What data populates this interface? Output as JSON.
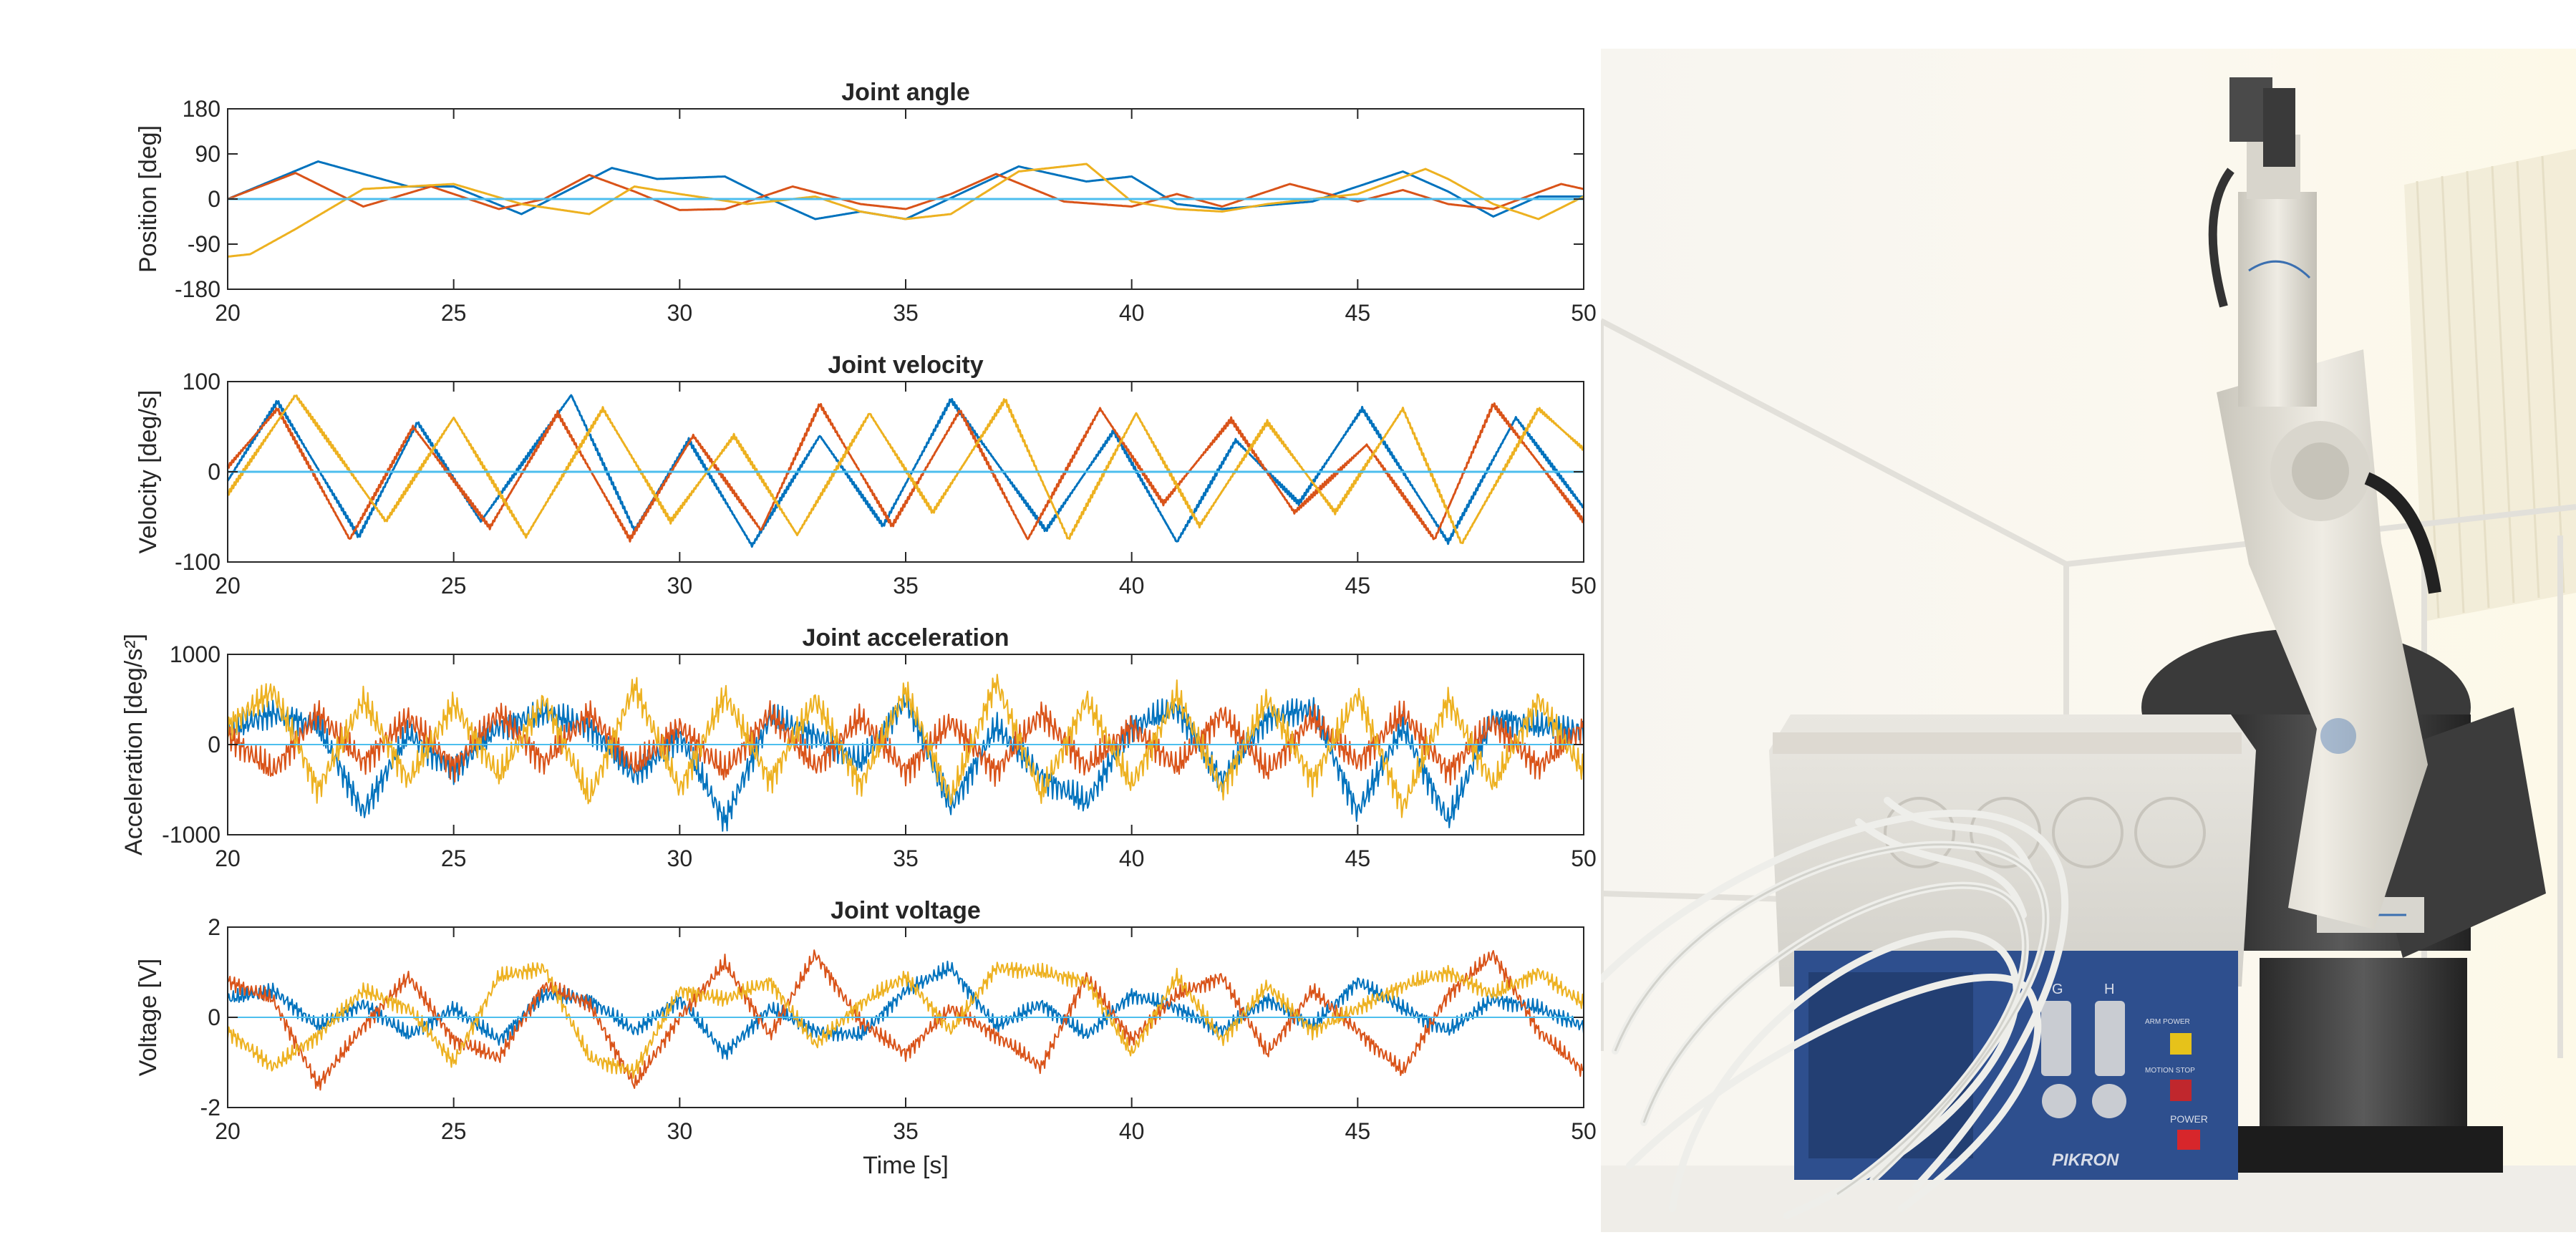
{
  "chart_data": [
    {
      "type": "line",
      "title": "Joint angle",
      "xlabel": "",
      "ylabel": "Position [deg]",
      "xlim": [
        20,
        50
      ],
      "ylim": [
        -180,
        180
      ],
      "xticks": [
        "20",
        "25",
        "30",
        "35",
        "40",
        "45",
        "50"
      ],
      "yticks": [
        "180",
        "90",
        "0",
        "-90",
        "-180"
      ],
      "grid": false,
      "legend": "none",
      "series": [
        {
          "color": "#0072BD",
          "x": [
            20,
            22,
            24,
            25,
            26.5,
            28.5,
            29.5,
            31,
            32,
            33,
            34,
            35,
            37.5,
            39,
            40,
            41,
            42,
            44,
            46,
            47,
            48,
            49,
            50
          ],
          "values": [
            0,
            75,
            25,
            25,
            -30,
            62,
            40,
            45,
            0,
            -40,
            -25,
            -40,
            65,
            35,
            45,
            -10,
            -20,
            -5,
            55,
            15,
            -35,
            5,
            5
          ]
        },
        {
          "color": "#D95319",
          "x": [
            20,
            21.5,
            23,
            24.5,
            26,
            27,
            28,
            29,
            30,
            31,
            32.5,
            34,
            35,
            36,
            37,
            38.5,
            40,
            41,
            42,
            43.5,
            45,
            46,
            47,
            48,
            49.5,
            50
          ],
          "values": [
            0,
            52,
            -15,
            25,
            -20,
            0,
            48,
            15,
            -22,
            -20,
            25,
            -10,
            -20,
            10,
            50,
            -5,
            -15,
            10,
            -15,
            30,
            -5,
            18,
            -10,
            -20,
            30,
            20
          ]
        },
        {
          "color": "#EDB120",
          "x": [
            20,
            20.5,
            21.5,
            23,
            25,
            26.5,
            28,
            29,
            30,
            31.5,
            33,
            34,
            35,
            36,
            37.5,
            39,
            40,
            41,
            42,
            43,
            45,
            46.5,
            47,
            48,
            49,
            50
          ],
          "values": [
            -115,
            -110,
            -60,
            20,
            30,
            -10,
            -30,
            25,
            10,
            -10,
            5,
            -25,
            -40,
            -30,
            55,
            70,
            -5,
            -20,
            -25,
            -10,
            10,
            60,
            40,
            -10,
            -40,
            5
          ]
        },
        {
          "color": "#4DBEEE",
          "x": [
            20,
            50
          ],
          "values": [
            0,
            0
          ]
        }
      ]
    },
    {
      "type": "line",
      "title": "Joint velocity",
      "xlabel": "",
      "ylabel": "Velocity [deg/s]",
      "xlim": [
        20,
        50
      ],
      "ylim": [
        -100,
        100
      ],
      "xticks": [
        "20",
        "25",
        "30",
        "35",
        "40",
        "45",
        "50"
      ],
      "yticks": [
        "100",
        "0",
        "-100"
      ],
      "grid": false,
      "legend": "none",
      "series": [
        {
          "color": "#0072BD",
          "x": [
            20,
            21.1,
            22.9,
            24.2,
            25.6,
            27.6,
            29,
            30.2,
            31.6,
            33.1,
            34.5,
            36,
            38.1,
            39.6,
            41,
            42.3,
            43.7,
            45.1,
            47,
            48.5,
            50
          ],
          "values": [
            -10,
            78,
            -72,
            55,
            -55,
            85,
            -65,
            35,
            -82,
            40,
            -60,
            80,
            -65,
            45,
            -78,
            35,
            -35,
            70,
            -78,
            60,
            -40
          ]
        },
        {
          "color": "#D95319",
          "x": [
            20,
            21.1,
            22.7,
            24.1,
            25.8,
            27.3,
            28.9,
            30.3,
            31.8,
            33.1,
            34.7,
            36.2,
            37.7,
            39.3,
            40.7,
            42.2,
            43.6,
            45.2,
            46.7,
            48,
            50
          ],
          "values": [
            5,
            70,
            -75,
            50,
            -62,
            65,
            -75,
            40,
            -65,
            75,
            -60,
            68,
            -75,
            70,
            -35,
            58,
            -45,
            30,
            -75,
            75,
            -55
          ]
        },
        {
          "color": "#EDB120",
          "x": [
            20,
            21.5,
            23.5,
            25,
            26.6,
            28.3,
            29.8,
            31.2,
            32.6,
            34.2,
            35.6,
            37.2,
            38.6,
            40.1,
            41.5,
            43,
            44.5,
            46,
            47.3,
            49,
            50
          ],
          "values": [
            -25,
            85,
            -55,
            60,
            -72,
            70,
            -55,
            40,
            -70,
            65,
            -45,
            80,
            -75,
            65,
            -60,
            55,
            -45,
            70,
            -80,
            70,
            25
          ]
        },
        {
          "color": "#4DBEEE",
          "x": [
            20,
            50
          ],
          "values": [
            0,
            0
          ]
        }
      ]
    },
    {
      "type": "line",
      "title": "Joint acceleration",
      "xlabel": "",
      "ylabel": "Acceleration [deg/s²]",
      "xlim": [
        20,
        50
      ],
      "ylim": [
        -1000,
        1000
      ],
      "xticks": [
        "20",
        "25",
        "30",
        "35",
        "40",
        "45",
        "50"
      ],
      "yticks": [
        "1000",
        "0",
        "-1000"
      ],
      "grid": false,
      "legend": "none",
      "series": [
        {
          "color": "#0072BD",
          "x": [
            20,
            21,
            22,
            23,
            24,
            25,
            26,
            27,
            28,
            29,
            30,
            31,
            32,
            33,
            34,
            35,
            36,
            37,
            38,
            39,
            40,
            41,
            42,
            43,
            44,
            45,
            46,
            47,
            48,
            49,
            50
          ],
          "values": [
            150,
            350,
            200,
            -750,
            120,
            -300,
            200,
            350,
            200,
            -350,
            100,
            -850,
            300,
            100,
            -200,
            500,
            -700,
            200,
            -350,
            -650,
            200,
            400,
            -400,
            300,
            400,
            -750,
            200,
            -850,
            300,
            200,
            150
          ]
        },
        {
          "color": "#D95319",
          "x": [
            20,
            21,
            22,
            23,
            24,
            25,
            26,
            27,
            28,
            29,
            30,
            31,
            32,
            33,
            34,
            35,
            36,
            37,
            38,
            39,
            40,
            41,
            42,
            43,
            44,
            45,
            46,
            47,
            48,
            49,
            50
          ],
          "values": [
            100,
            -300,
            350,
            -200,
            300,
            -250,
            350,
            -200,
            350,
            -250,
            200,
            -300,
            350,
            -250,
            300,
            -300,
            250,
            -300,
            350,
            -250,
            200,
            -250,
            350,
            -300,
            300,
            -200,
            350,
            -300,
            250,
            -250,
            200
          ]
        },
        {
          "color": "#EDB120",
          "x": [
            20,
            21,
            22,
            23,
            24,
            25,
            26,
            27,
            28,
            29,
            30,
            31,
            32,
            33,
            34,
            35,
            36,
            37,
            38,
            39,
            40,
            41,
            42,
            43,
            44,
            45,
            46,
            47,
            48,
            49,
            50
          ],
          "values": [
            200,
            600,
            -500,
            500,
            -400,
            450,
            -350,
            500,
            -600,
            650,
            -500,
            550,
            -400,
            500,
            -450,
            600,
            -600,
            700,
            -550,
            500,
            -450,
            550,
            -500,
            500,
            -400,
            550,
            -700,
            500,
            -450,
            500,
            -300
          ]
        },
        {
          "color": "#4DBEEE",
          "x": [
            20,
            50
          ],
          "values": [
            0,
            0
          ]
        }
      ]
    },
    {
      "type": "line",
      "title": "Joint voltage",
      "xlabel": "Time [s]",
      "ylabel": "Voltage [V]",
      "xlim": [
        20,
        50
      ],
      "ylim": [
        -2,
        2
      ],
      "xticks": [
        "20",
        "25",
        "30",
        "35",
        "40",
        "45",
        "50"
      ],
      "yticks": [
        "2",
        "0",
        "-2"
      ],
      "grid": false,
      "legend": "none",
      "series": [
        {
          "color": "#0072BD",
          "x": [
            20,
            21,
            22,
            23,
            24,
            25,
            26,
            27,
            28,
            29,
            30,
            31,
            32,
            33,
            34,
            35,
            36,
            37,
            38,
            39,
            40,
            41,
            42,
            43,
            44,
            45,
            46,
            47,
            48,
            49,
            50
          ],
          "values": [
            0.4,
            0.6,
            -0.2,
            0.3,
            -0.4,
            0.2,
            -0.5,
            0.5,
            0.4,
            -0.3,
            0.4,
            -0.8,
            0.2,
            -0.3,
            -0.4,
            0.6,
            1.1,
            -0.2,
            0.3,
            -0.4,
            0.5,
            0.2,
            -0.3,
            0.4,
            -0.2,
            0.8,
            0.2,
            -0.3,
            0.4,
            0.2,
            -0.2
          ]
        },
        {
          "color": "#D95319",
          "x": [
            20,
            21,
            22,
            23,
            24,
            25,
            26,
            27,
            28,
            29,
            30,
            31,
            32,
            33,
            34,
            35,
            36,
            37,
            38,
            39,
            40,
            41,
            42,
            43,
            44,
            45,
            46,
            47,
            48,
            49,
            50
          ],
          "values": [
            0.8,
            0.4,
            -1.5,
            -0.2,
            0.9,
            -0.5,
            -0.9,
            0.7,
            0.3,
            -1.5,
            0.0,
            1.2,
            -0.4,
            1.4,
            -0.1,
            -0.8,
            0.2,
            -0.4,
            -1.1,
            0.9,
            -0.5,
            0.5,
            0.9,
            -0.8,
            0.6,
            -0.3,
            -1.2,
            0.5,
            1.4,
            -0.3,
            -1.2
          ]
        },
        {
          "color": "#EDB120",
          "x": [
            20,
            21,
            22,
            23,
            24,
            25,
            26,
            27,
            28,
            29,
            30,
            31,
            32,
            33,
            34,
            35,
            36,
            37,
            38,
            39,
            40,
            41,
            42,
            43,
            44,
            45,
            46,
            47,
            48,
            49,
            50
          ],
          "values": [
            -0.3,
            -1.1,
            -0.4,
            0.6,
            0.2,
            -1.0,
            0.9,
            1.1,
            -0.9,
            -1.2,
            0.6,
            0.4,
            0.8,
            -0.6,
            0.3,
            0.9,
            -0.3,
            1.1,
            1.0,
            0.8,
            -0.8,
            0.9,
            -0.5,
            0.7,
            -0.3,
            0.2,
            0.7,
            1.0,
            0.5,
            1.0,
            0.3
          ]
        },
        {
          "color": "#4DBEEE",
          "x": [
            20,
            50
          ],
          "values": [
            0,
            0
          ]
        }
      ]
    }
  ],
  "photo": {
    "subject": "robot arm with control box",
    "control_box_labels": [
      "G",
      "H",
      "ARM POWER",
      "MOTION STOP",
      "POWER",
      "PIKRON"
    ]
  }
}
